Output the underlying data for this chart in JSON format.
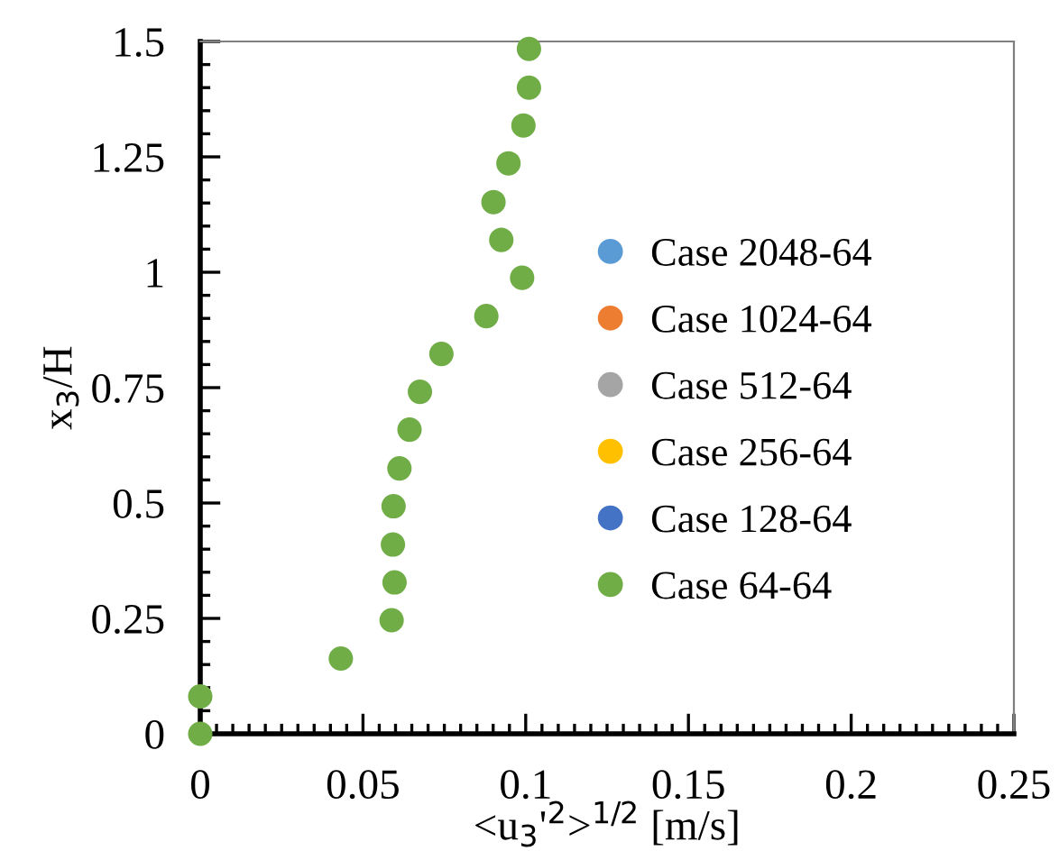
{
  "chart_data": {
    "type": "scatter",
    "xlabel": "<u$_{3}$'$^{2}$>$^{1/2}$ [m/s]",
    "ylabel": "x$_{3}$/H",
    "xlim": [
      0,
      0.25
    ],
    "xticks": [
      0,
      0.05,
      0.1,
      0.15,
      0.2,
      0.25
    ],
    "ylim": [
      0,
      1.5
    ],
    "yticks": [
      0,
      0.25,
      0.5,
      0.75,
      1,
      1.25,
      1.5
    ],
    "grid": false,
    "legend": "right",
    "marker": "circle",
    "x": [
      0,
      0,
      0.0432,
      0.0588,
      0.0597,
      0.0592,
      0.0594,
      0.0612,
      0.0643,
      0.0675,
      0.0741,
      0.0879,
      0.0989,
      0.0925,
      0.0901,
      0.0947,
      0.0993,
      0.101,
      0.101
    ],
    "series": [
      {
        "name": "Case 2048-64",
        "color": "#5b9bd5",
        "values": [
          null,
          null,
          null,
          null,
          null,
          null,
          null,
          null,
          null,
          null,
          null,
          null,
          null,
          null,
          null,
          null,
          null,
          null,
          null
        ]
      },
      {
        "name": "Case 1024-64",
        "color": "#ed7d31",
        "values": [
          null,
          null,
          null,
          null,
          null,
          null,
          null,
          null,
          null,
          null,
          null,
          null,
          null,
          null,
          null,
          null,
          null,
          null,
          null
        ]
      },
      {
        "name": "Case 512-64",
        "color": "#a5a5a5",
        "values": [
          null,
          null,
          null,
          null,
          null,
          null,
          null,
          null,
          null,
          null,
          null,
          null,
          null,
          null,
          null,
          null,
          null,
          null,
          null
        ]
      },
      {
        "name": "Case 256-64",
        "color": "#ffc000",
        "values": [
          null,
          null,
          null,
          null,
          null,
          null,
          null,
          null,
          null,
          null,
          null,
          null,
          null,
          null,
          null,
          null,
          null,
          null,
          null
        ]
      },
      {
        "name": "Case 128-64",
        "color": "#4472c4",
        "values": [
          null,
          null,
          null,
          null,
          null,
          null,
          null,
          null,
          null,
          null,
          null,
          null,
          null,
          null,
          null,
          null,
          null,
          null,
          null
        ]
      },
      {
        "name": "Case 64-64",
        "color": "#70ad47",
        "values": [
          0,
          0.081,
          0.163,
          0.246,
          0.328,
          0.41,
          0.493,
          0.575,
          0.659,
          0.741,
          0.823,
          0.905,
          0.988,
          1.07,
          1.152,
          1.236,
          1.318,
          1.4,
          1.484
        ]
      }
    ]
  }
}
